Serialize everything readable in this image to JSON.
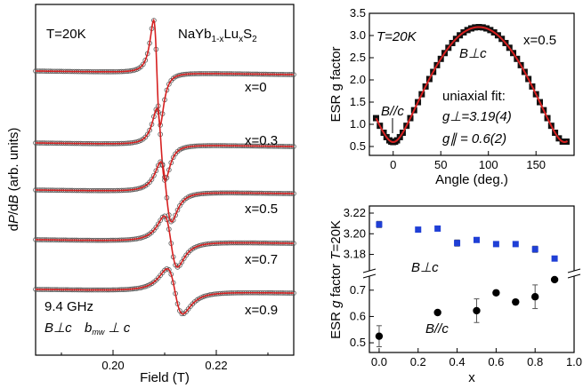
{
  "chart_data": [
    {
      "type": "line",
      "panel": "left",
      "xlabel": "Field (T)",
      "ylabel": "dP/dB (arb. units)",
      "xlim": [
        0.185,
        0.235
      ],
      "x_ticks": [
        "0.20",
        "0.22"
      ],
      "x_tick_values": [
        0.2,
        0.22
      ],
      "title_left": "T=20K",
      "title_right": "NaYb1-xLuxS2",
      "info_freq": "9.4 GHz",
      "info_orient": "B⊥c",
      "info_mw": "bmw ⊥ c",
      "curve_color": "#d62020",
      "symbol_color": "#555555",
      "series": [
        {
          "name": "x=0",
          "center": 0.2085,
          "width": 0.0011
        },
        {
          "name": "x=0.3",
          "center": 0.2093,
          "width": 0.0014
        },
        {
          "name": "x=0.5",
          "center": 0.2103,
          "width": 0.0018
        },
        {
          "name": "x=0.7",
          "center": 0.2112,
          "width": 0.0022
        },
        {
          "name": "x=0.9",
          "center": 0.212,
          "width": 0.0026
        }
      ]
    },
    {
      "type": "scatter",
      "panel": "top-right",
      "xlabel": "Angle (deg.)",
      "ylabel": "ESR g factor",
      "xlim": [
        -25,
        190
      ],
      "ylim": [
        0.3,
        3.5
      ],
      "x_ticks": [
        "0",
        "50",
        "100",
        "150"
      ],
      "x_tick_values": [
        0,
        50,
        100,
        150
      ],
      "y_ticks": [
        "0.5",
        "1.0",
        "1.5",
        "2.0",
        "2.5",
        "3.0",
        "3.5"
      ],
      "y_tick_values": [
        0.5,
        1.0,
        1.5,
        2.0,
        2.5,
        3.0,
        3.5
      ],
      "text_T": "T=20K",
      "text_x": "x=0.5",
      "text_perp": "B⊥c",
      "text_par": "B//c",
      "fit_title": "uniaxial fit:",
      "fit_gperp": "g⊥=3.19(4)",
      "fit_gpar": "g∥ = 0.6(2)",
      "g_perp": 3.19,
      "g_par": 0.6,
      "angles": [
        -18,
        -14,
        -10,
        -7,
        -4,
        -2,
        0,
        2,
        4,
        7,
        10,
        14,
        18,
        22,
        26,
        30,
        34,
        38,
        42,
        46,
        50,
        54,
        58,
        62,
        66,
        70,
        74,
        78,
        82,
        86,
        90,
        94,
        98,
        102,
        106,
        110,
        114,
        118,
        122,
        126,
        130,
        134,
        138,
        142,
        146,
        150,
        154,
        158,
        162,
        166,
        170,
        174,
        178,
        182
      ],
      "marker_color": "#111111",
      "fit_color": "#d62020"
    },
    {
      "type": "scatter",
      "panel": "bottom-right",
      "xlabel": "x",
      "ylabel": "ESR g factor T=20K",
      "xlim": [
        -0.05,
        1.0
      ],
      "x_ticks": [
        "0.0",
        "0.2",
        "0.4",
        "0.6",
        "0.8",
        "1.0"
      ],
      "x_tick_values": [
        0.0,
        0.2,
        0.4,
        0.6,
        0.8,
        1.0
      ],
      "upper_ylim": [
        3.165,
        3.22
      ],
      "upper_y_ticks": [
        "3.18",
        "3.20",
        "3.22"
      ],
      "upper_y_tick_values": [
        3.18,
        3.2,
        3.22
      ],
      "lower_ylim": [
        0.48,
        0.75
      ],
      "lower_y_ticks": [
        "0.5",
        "0.6",
        "0.7"
      ],
      "lower_y_tick_values": [
        0.5,
        0.6,
        0.7
      ],
      "series": [
        {
          "name": "B⊥c",
          "color": "#1f3fd6",
          "marker": "square",
          "x": [
            0.0,
            0.2,
            0.3,
            0.4,
            0.5,
            0.6,
            0.7,
            0.8,
            0.9
          ],
          "y": [
            3.209,
            3.204,
            3.205,
            3.191,
            3.194,
            3.19,
            3.19,
            3.185,
            3.176
          ],
          "err": [
            0.003,
            0.001,
            0.001,
            0.003,
            0.001,
            0.001,
            0.001,
            0.003,
            0.001
          ]
        },
        {
          "name": "B//c",
          "color": "#000000",
          "marker": "circle",
          "x": [
            0.0,
            0.3,
            0.5,
            0.6,
            0.7,
            0.8,
            0.9
          ],
          "y": [
            0.525,
            0.615,
            0.622,
            0.69,
            0.655,
            0.675,
            0.74
          ],
          "err": [
            0.04,
            0.005,
            0.045,
            0.005,
            0.005,
            0.045,
            0.005
          ]
        }
      ]
    }
  ]
}
